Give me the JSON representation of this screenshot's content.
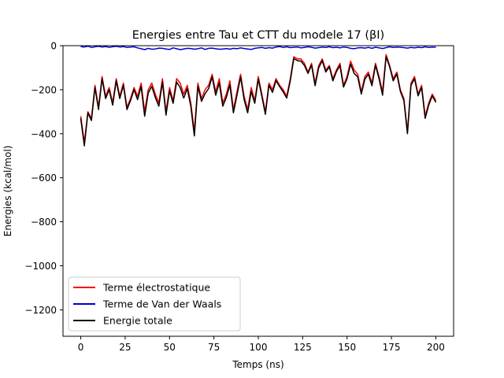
{
  "chart_data": {
    "type": "line",
    "title": "Energies entre Tau et CTT du modele 17 (βI)",
    "xlabel": "Temps (ns)",
    "ylabel": "Energies (kcal/mol)",
    "xlim": [
      -10,
      210
    ],
    "ylim": [
      -1320,
      0
    ],
    "x_ticks": [
      0,
      25,
      50,
      75,
      100,
      125,
      150,
      175,
      200
    ],
    "y_ticks": [
      0,
      -200,
      -400,
      -600,
      -800,
      -1000,
      -1200
    ],
    "grid": false,
    "legend_position": "lower-left",
    "x": [
      0,
      2,
      4,
      6,
      8,
      10,
      12,
      14,
      16,
      18,
      20,
      22,
      24,
      26,
      28,
      30,
      32,
      34,
      36,
      38,
      40,
      42,
      44,
      46,
      48,
      50,
      52,
      54,
      56,
      58,
      60,
      62,
      64,
      66,
      68,
      70,
      72,
      74,
      76,
      78,
      80,
      82,
      84,
      86,
      88,
      90,
      92,
      94,
      96,
      98,
      100,
      102,
      104,
      106,
      108,
      110,
      112,
      114,
      116,
      118,
      120,
      122,
      124,
      126,
      128,
      130,
      132,
      134,
      136,
      138,
      140,
      142,
      144,
      146,
      148,
      150,
      152,
      154,
      156,
      158,
      160,
      162,
      164,
      166,
      168,
      170,
      172,
      174,
      176,
      178,
      180,
      182,
      184,
      186,
      188,
      190,
      192,
      194,
      196,
      198,
      200
    ],
    "series": [
      {
        "name": "Terme électrostatique",
        "color": "#ff0000",
        "values": [
          -320,
          -440,
          -300,
          -330,
          -180,
          -280,
          -140,
          -230,
          -190,
          -260,
          -150,
          -230,
          -170,
          -280,
          -240,
          -190,
          -230,
          -170,
          -300,
          -200,
          -170,
          -220,
          -260,
          -150,
          -300,
          -190,
          -250,
          -150,
          -170,
          -220,
          -180,
          -260,
          -390,
          -170,
          -240,
          -200,
          -180,
          -130,
          -210,
          -150,
          -260,
          -220,
          -160,
          -290,
          -210,
          -130,
          -230,
          -290,
          -190,
          -250,
          -140,
          -220,
          -300,
          -170,
          -200,
          -150,
          -180,
          -200,
          -230,
          -150,
          -50,
          -60,
          -60,
          -80,
          -120,
          -80,
          -170,
          -90,
          -60,
          -110,
          -90,
          -150,
          -110,
          -80,
          -180,
          -140,
          -70,
          -110,
          -130,
          -210,
          -140,
          -120,
          -170,
          -80,
          -140,
          -210,
          -40,
          -90,
          -150,
          -120,
          -200,
          -240,
          -390,
          -170,
          -140,
          -220,
          -180,
          -320,
          -260,
          -220,
          -250
        ]
      },
      {
        "name": "Terme de Van der Waals",
        "color": "#0000cc",
        "values": [
          -4,
          -6,
          -2,
          -8,
          -5,
          -3,
          -6,
          -4,
          -7,
          -5,
          -3,
          -6,
          -4,
          -8,
          -6,
          -5,
          -10,
          -14,
          -18,
          -12,
          -16,
          -15,
          -11,
          -12,
          -15,
          -17,
          -10,
          -14,
          -18,
          -15,
          -12,
          -13,
          -16,
          -14,
          -10,
          -17,
          -12,
          -11,
          -14,
          -16,
          -15,
          -13,
          -16,
          -12,
          -14,
          -10,
          -13,
          -15,
          -17,
          -12,
          -10,
          -8,
          -12,
          -9,
          -11,
          -6,
          -4,
          -8,
          -5,
          -9,
          -7,
          -6,
          -10,
          -8,
          -5,
          -7,
          -11,
          -9,
          -6,
          -8,
          -5,
          -9,
          -7,
          -10,
          -6,
          -8,
          -12,
          -14,
          -10,
          -9,
          -11,
          -8,
          -12,
          -7,
          -10,
          -13,
          -9,
          -5,
          -8,
          -6,
          -7,
          -9,
          -11,
          -8,
          -10,
          -7,
          -9,
          -5,
          -8,
          -6,
          -7
        ]
      },
      {
        "name": "Energie totale",
        "color": "#000000",
        "values": [
          -330,
          -455,
          -305,
          -340,
          -190,
          -290,
          -150,
          -240,
          -200,
          -270,
          -160,
          -240,
          -180,
          -290,
          -250,
          -200,
          -245,
          -185,
          -320,
          -215,
          -185,
          -235,
          -275,
          -165,
          -315,
          -205,
          -262,
          -165,
          -190,
          -238,
          -195,
          -275,
          -410,
          -185,
          -253,
          -218,
          -195,
          -142,
          -225,
          -168,
          -275,
          -235,
          -178,
          -305,
          -225,
          -142,
          -245,
          -305,
          -208,
          -262,
          -152,
          -230,
          -312,
          -180,
          -212,
          -158,
          -186,
          -210,
          -238,
          -160,
          -58,
          -68,
          -70,
          -90,
          -126,
          -88,
          -182,
          -100,
          -68,
          -120,
          -96,
          -160,
          -118,
          -90,
          -188,
          -150,
          -84,
          -126,
          -142,
          -220,
          -152,
          -130,
          -182,
          -88,
          -150,
          -225,
          -50,
          -96,
          -160,
          -128,
          -208,
          -250,
          -400,
          -180,
          -150,
          -228,
          -190,
          -330,
          -270,
          -228,
          -258
        ]
      }
    ]
  }
}
